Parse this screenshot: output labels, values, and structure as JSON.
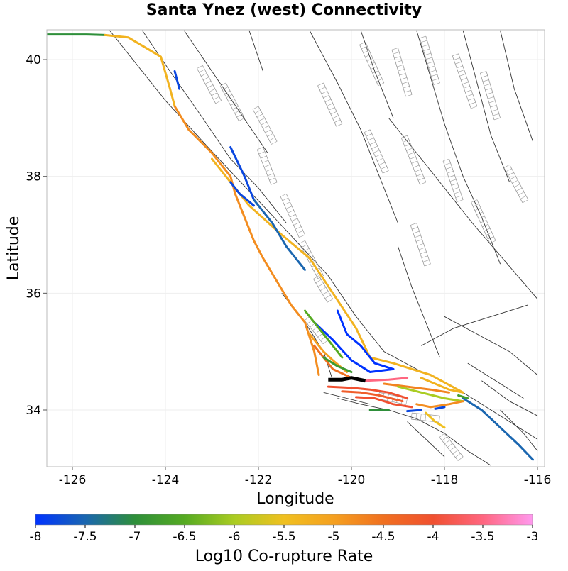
{
  "title": "Santa Ynez (west) Connectivity",
  "x_axis": {
    "label": "Longitude",
    "ticks": [
      "-126",
      "-124",
      "-122",
      "-120",
      "-118",
      "-116"
    ],
    "range": [
      -126.6,
      -116
    ]
  },
  "y_axis": {
    "label": "Latitude",
    "ticks": [
      "34",
      "36",
      "38",
      "40"
    ],
    "range": [
      33,
      40.5
    ]
  },
  "colorbar": {
    "label": "Log10 Co-rupture Rate",
    "ticks": [
      "-8",
      "-7.5",
      "-7",
      "-6.5",
      "-6",
      "-5.5",
      "-5",
      "-4.5",
      "-4",
      "-3.5",
      "-3"
    ],
    "range": [
      -8,
      -3
    ],
    "colors": [
      "#0033ff",
      "#1a66b0",
      "#2e8f3a",
      "#55aa22",
      "#aacc22",
      "#f0c020",
      "#f5a020",
      "#f07020",
      "#f05030",
      "#ff6680",
      "#ff99ee"
    ]
  },
  "colors": {
    "target_fault": "#000000",
    "base_faults": "#333333",
    "surface_projections": "#999999"
  },
  "chart_data": {
    "type": "map",
    "title": "Santa Ynez (west) Connectivity",
    "xlabel": "Longitude",
    "ylabel": "Latitude",
    "xlim": [
      -126.6,
      -116
    ],
    "ylim": [
      33,
      40.5
    ],
    "grid": true,
    "colorbar_label": "Log10 Co-rupture Rate",
    "colorbar_range": [
      -8,
      -3
    ],
    "target_fault": {
      "name": "Santa Ynez (west)",
      "path": [
        [
          -120.5,
          34.52
        ],
        [
          -120.2,
          34.52
        ],
        [
          -120.0,
          34.55
        ],
        [
          -119.7,
          34.5
        ]
      ]
    },
    "faults": [
      {
        "rate": -7.0,
        "path": [
          [
            -126.6,
            40.43
          ],
          [
            -125.7,
            40.43
          ],
          [
            -125.3,
            40.42
          ]
        ]
      },
      {
        "rate": -5.3,
        "path": [
          [
            -125.3,
            40.42
          ],
          [
            -124.8,
            40.38
          ],
          [
            -124.1,
            40.05
          ],
          [
            -123.9,
            39.5
          ],
          [
            -123.8,
            39.2
          ]
        ]
      },
      {
        "rate": -4.8,
        "path": [
          [
            -123.8,
            39.2
          ],
          [
            -123.5,
            38.8
          ],
          [
            -123.0,
            38.4
          ],
          [
            -122.6,
            38.0
          ],
          [
            -122.5,
            37.7
          ],
          [
            -122.3,
            37.3
          ],
          [
            -122.1,
            36.9
          ],
          [
            -121.9,
            36.6
          ],
          [
            -121.6,
            36.2
          ],
          [
            -121.3,
            35.8
          ],
          [
            -121.0,
            35.5
          ],
          [
            -120.8,
            35.0
          ],
          [
            -120.7,
            34.6
          ]
        ]
      },
      {
        "rate": -5.3,
        "path": [
          [
            -123.0,
            38.3
          ],
          [
            -122.6,
            37.9
          ],
          [
            -122.2,
            37.5
          ],
          [
            -121.5,
            37.0
          ],
          [
            -120.9,
            36.6
          ],
          [
            -120.4,
            36.0
          ],
          [
            -119.9,
            35.4
          ],
          [
            -119.6,
            34.9
          ],
          [
            -119.1,
            34.8
          ],
          [
            -118.3,
            34.6
          ],
          [
            -117.6,
            34.3
          ]
        ]
      },
      {
        "rate": -7.8,
        "path": [
          [
            -123.8,
            39.8
          ],
          [
            -123.7,
            39.5
          ]
        ]
      },
      {
        "rate": -7.8,
        "path": [
          [
            -122.6,
            38.5
          ],
          [
            -122.3,
            38.0
          ],
          [
            -122.1,
            37.6
          ]
        ]
      },
      {
        "rate": -7.5,
        "path": [
          [
            -122.1,
            37.6
          ],
          [
            -121.7,
            37.2
          ],
          [
            -121.4,
            36.8
          ],
          [
            -121.0,
            36.4
          ]
        ]
      },
      {
        "rate": -7.8,
        "path": [
          [
            -122.6,
            37.9
          ],
          [
            -122.4,
            37.7
          ],
          [
            -122.1,
            37.5
          ]
        ]
      },
      {
        "rate": -8.0,
        "path": [
          [
            -120.3,
            35.7
          ],
          [
            -120.1,
            35.3
          ],
          [
            -119.8,
            35.1
          ],
          [
            -119.5,
            34.8
          ],
          [
            -119.1,
            34.7
          ]
        ]
      },
      {
        "rate": -8.0,
        "path": [
          [
            -120.8,
            35.5
          ],
          [
            -120.4,
            35.2
          ],
          [
            -120.0,
            34.85
          ],
          [
            -119.6,
            34.65
          ],
          [
            -119.1,
            34.7
          ]
        ]
      },
      {
        "rate": -6.5,
        "path": [
          [
            -121.0,
            35.7
          ],
          [
            -120.7,
            35.4
          ],
          [
            -120.4,
            35.1
          ],
          [
            -120.2,
            34.9
          ]
        ]
      },
      {
        "rate": -5.0,
        "path": [
          [
            -120.9,
            35.3
          ],
          [
            -120.6,
            35.0
          ],
          [
            -120.4,
            34.85
          ],
          [
            -120.1,
            34.65
          ]
        ]
      },
      {
        "rate": -4.5,
        "path": [
          [
            -120.8,
            35.1
          ],
          [
            -120.6,
            34.9
          ],
          [
            -120.4,
            34.7
          ],
          [
            -120.0,
            34.55
          ]
        ]
      },
      {
        "rate": -6.8,
        "path": [
          [
            -120.6,
            34.9
          ],
          [
            -120.3,
            34.75
          ],
          [
            -120.0,
            34.65
          ]
        ]
      },
      {
        "rate": -4.0,
        "path": [
          [
            -120.5,
            34.4
          ],
          [
            -120.0,
            34.38
          ],
          [
            -119.6,
            34.35
          ],
          [
            -119.2,
            34.3
          ],
          [
            -118.8,
            34.2
          ]
        ]
      },
      {
        "rate": -4.2,
        "path": [
          [
            -120.2,
            34.32
          ],
          [
            -119.8,
            34.3
          ],
          [
            -119.4,
            34.25
          ],
          [
            -118.9,
            34.15
          ]
        ]
      },
      {
        "rate": -3.5,
        "path": [
          [
            -119.7,
            34.5
          ],
          [
            -119.2,
            34.52
          ],
          [
            -118.8,
            34.55
          ]
        ]
      },
      {
        "rate": -4.0,
        "path": [
          [
            -119.9,
            34.22
          ],
          [
            -119.5,
            34.2
          ],
          [
            -119.1,
            34.1
          ],
          [
            -118.7,
            34.05
          ]
        ]
      },
      {
        "rate": -4.7,
        "path": [
          [
            -119.3,
            34.45
          ],
          [
            -118.8,
            34.4
          ],
          [
            -118.3,
            34.35
          ],
          [
            -117.9,
            34.3
          ]
        ]
      },
      {
        "rate": -6.0,
        "path": [
          [
            -119.0,
            34.4
          ],
          [
            -118.5,
            34.3
          ],
          [
            -118.0,
            34.2
          ],
          [
            -117.6,
            34.15
          ]
        ]
      },
      {
        "rate": -4.8,
        "path": [
          [
            -118.6,
            34.1
          ],
          [
            -118.3,
            34.05
          ],
          [
            -117.9,
            34.1
          ],
          [
            -117.6,
            34.15
          ]
        ]
      },
      {
        "rate": -5.3,
        "path": [
          [
            -118.5,
            34.55
          ],
          [
            -118.2,
            34.45
          ],
          [
            -117.9,
            34.35
          ],
          [
            -117.6,
            34.3
          ]
        ]
      },
      {
        "rate": -7.0,
        "path": [
          [
            -119.6,
            34.0
          ],
          [
            -119.2,
            34.0
          ]
        ]
      },
      {
        "rate": -7.8,
        "path": [
          [
            -118.8,
            33.98
          ],
          [
            -118.5,
            34.0
          ]
        ]
      },
      {
        "rate": -7.8,
        "path": [
          [
            -118.2,
            34.02
          ],
          [
            -118.0,
            34.05
          ]
        ]
      },
      {
        "rate": -5.5,
        "path": [
          [
            -118.4,
            33.95
          ],
          [
            -118.2,
            33.8
          ],
          [
            -118.0,
            33.7
          ]
        ]
      },
      {
        "rate": -7.5,
        "path": [
          [
            -117.6,
            34.2
          ],
          [
            -117.2,
            34.0
          ],
          [
            -116.8,
            33.7
          ],
          [
            -116.4,
            33.4
          ],
          [
            -116.1,
            33.15
          ]
        ]
      },
      {
        "rate": -6.7,
        "path": [
          [
            -117.7,
            34.25
          ],
          [
            -117.5,
            34.2
          ]
        ]
      }
    ]
  }
}
